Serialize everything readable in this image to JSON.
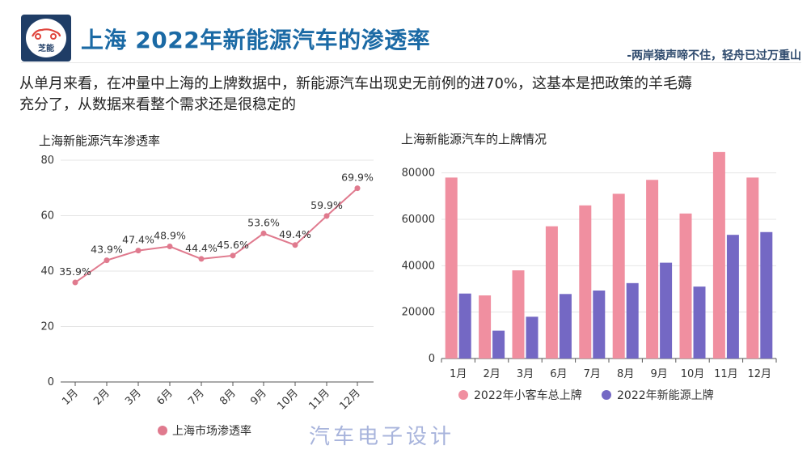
{
  "header": {
    "logo_text": "芝能",
    "title": "上海 2022年新能源汽车的渗透率",
    "subtitle": "-两岸猿声啼不住，轻舟已过万重山"
  },
  "description": {
    "line1": "从单月来看，在冲量中上海的上牌数据中，新能源汽车出现史无前例的进70%，这基本是把政策的羊毛薅",
    "line2": "充分了，从数据来看整个需求还是很稳定的"
  },
  "watermark": "汽车电子设计",
  "colors": {
    "title": "#1b6aa5",
    "line": "#e07a8e",
    "bar_total": "#f08fa0",
    "bar_nev": "#7468c4"
  },
  "chart_data": [
    {
      "type": "line",
      "title": "上海新能源汽车渗透率",
      "categories": [
        "1月",
        "2月",
        "3月",
        "6月",
        "7月",
        "8月",
        "9月",
        "10月",
        "11月",
        "12月"
      ],
      "series": [
        {
          "name": "上海市场渗透率",
          "values": [
            35.9,
            43.9,
            47.4,
            48.9,
            44.4,
            45.6,
            53.6,
            49.4,
            59.9,
            69.9
          ]
        }
      ],
      "data_labels": [
        "35.9%",
        "43.9%",
        "47.4%",
        "48.9%",
        "44.4%",
        "45.6%",
        "53.6%",
        "49.4%",
        "59.9%",
        "69.9%"
      ],
      "ylim": [
        0,
        80
      ],
      "yticks": [
        0,
        20,
        40,
        60,
        80
      ],
      "ytick_labels": [
        "0",
        "20",
        "40",
        "60",
        "80"
      ],
      "grid": true,
      "legend": "bottom"
    },
    {
      "type": "bar",
      "title": "上海新能源汽车的上牌情况",
      "categories": [
        "1月",
        "2月",
        "3月",
        "6月",
        "7月",
        "8月",
        "9月",
        "10月",
        "11月",
        "12月"
      ],
      "series": [
        {
          "name": "2022年小客车总上牌",
          "values": [
            78000,
            27200,
            38000,
            57000,
            66000,
            71000,
            77000,
            62500,
            89000,
            78000
          ]
        },
        {
          "name": "2022年新能源上牌",
          "values": [
            28000,
            12000,
            18000,
            27800,
            29300,
            32500,
            41300,
            31000,
            53300,
            54500
          ]
        }
      ],
      "ylim": [
        0,
        90000
      ],
      "yticks": [
        0,
        20000,
        40000,
        60000,
        80000
      ],
      "ytick_labels": [
        "0",
        "20000",
        "40000",
        "60000",
        "80000"
      ],
      "grid": true,
      "legend": "bottom"
    }
  ]
}
